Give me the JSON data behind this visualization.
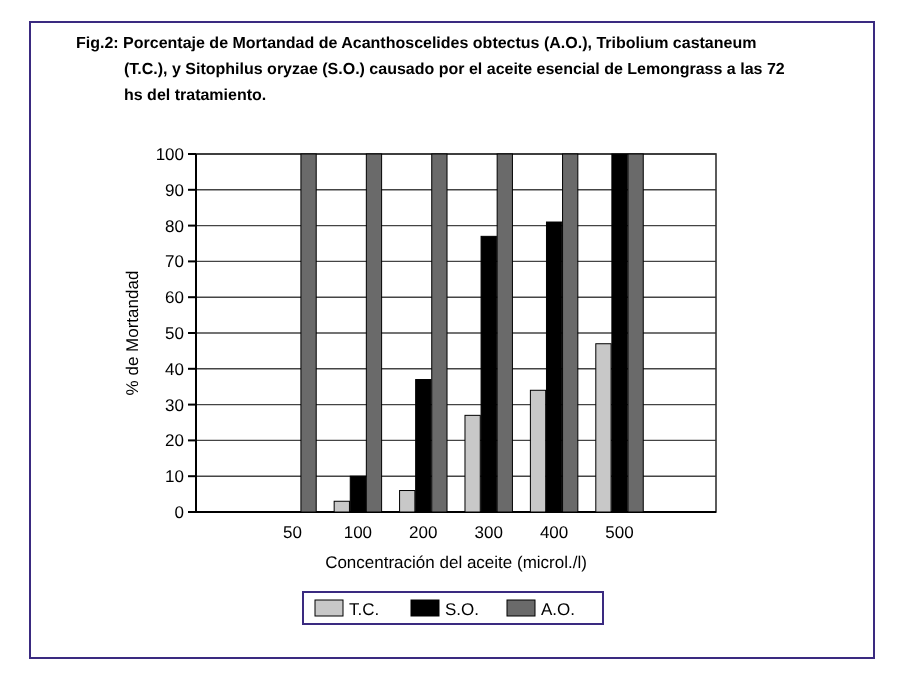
{
  "chart_data": {
    "type": "bar",
    "title": "Fig.2: Porcentaje de Mortandad de Acanthoscelides obtectus (A.O.), Tribolium castaneum (T.C.), y Sitophilus oryzae (S.O.) causado por el aceite esencial de Lemongrass a las 72 hs del tratamiento.",
    "xlabel": "Concentración del aceite (microl./l)",
    "ylabel": "% de Mortandad",
    "categories": [
      null,
      "50",
      "100",
      "200",
      "300",
      "400",
      "500",
      null
    ],
    "series": [
      {
        "name": "T.C.",
        "color": "#c8c8c8",
        "values": [
          null,
          0,
          3,
          6,
          27,
          34,
          47,
          null
        ]
      },
      {
        "name": "S.O.",
        "color": "#000000",
        "values": [
          null,
          0,
          10,
          37,
          77,
          81,
          100,
          null
        ]
      },
      {
        "name": "A.O.",
        "color": "#6a6a6a",
        "values": [
          null,
          100,
          100,
          100,
          100,
          100,
          100,
          null
        ]
      }
    ],
    "ylim": [
      0,
      100
    ],
    "yticks": [
      0,
      10,
      20,
      30,
      40,
      50,
      60,
      70,
      80,
      90,
      100
    ],
    "grid": "y",
    "legend": "bottom"
  }
}
